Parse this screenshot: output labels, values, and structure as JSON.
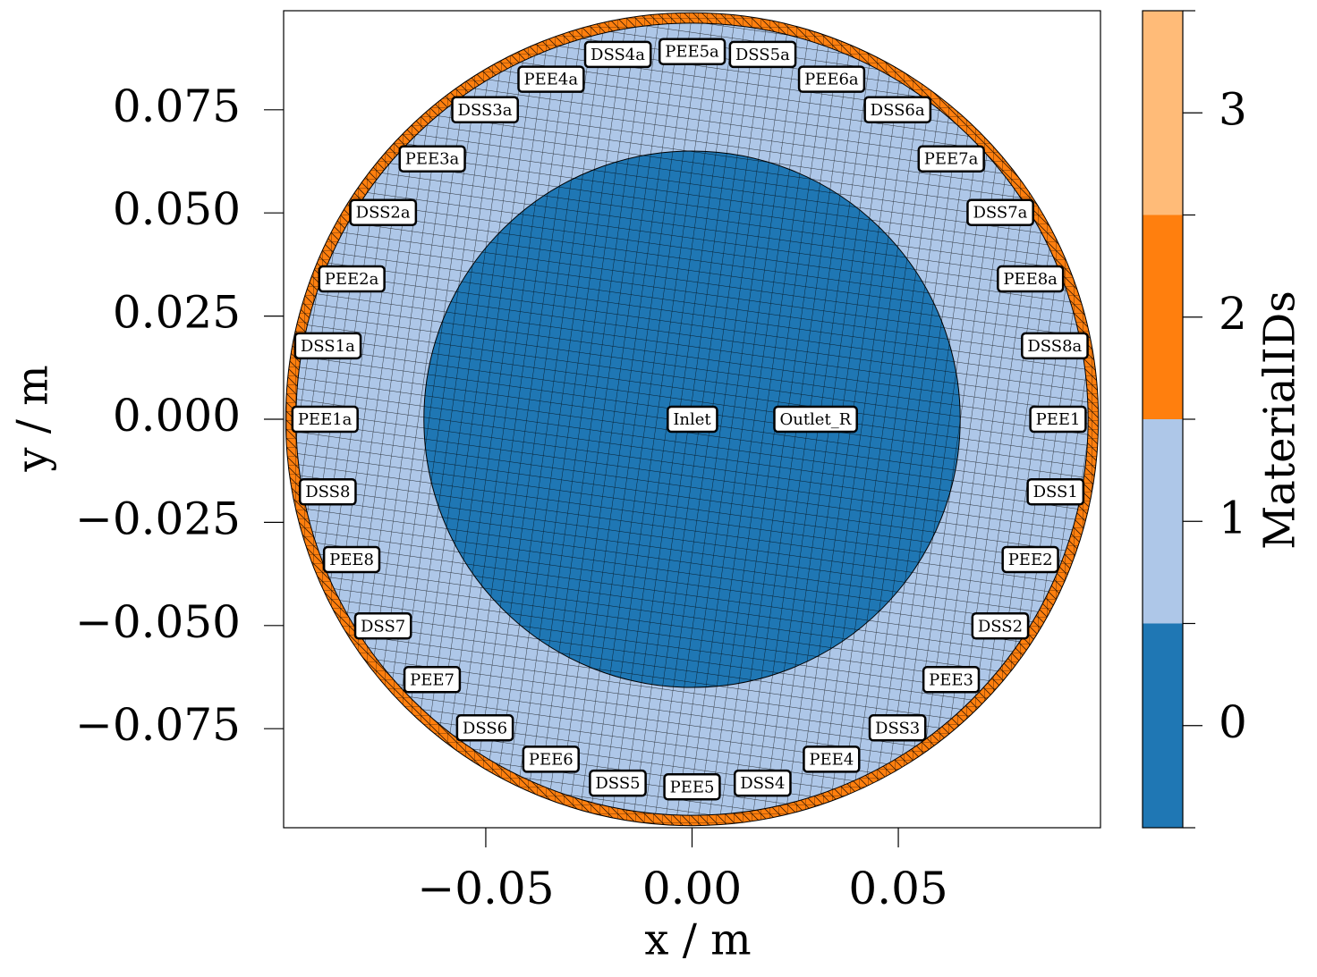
{
  "chart_data": {
    "type": "mesh",
    "xlabel": "x / m",
    "ylabel": "y / m",
    "xlim": [
      -0.099,
      0.099
    ],
    "ylim": [
      -0.099,
      0.099
    ],
    "xticks": [
      {
        "value": -0.05,
        "label": "−0.05"
      },
      {
        "value": 0,
        "label": "0.00"
      },
      {
        "value": 0.05,
        "label": "0.05"
      }
    ],
    "yticks": [
      {
        "value": -0.075,
        "label": "−0.075"
      },
      {
        "value": -0.05,
        "label": "−0.050"
      },
      {
        "value": -0.025,
        "label": "−0.025"
      },
      {
        "value": 0,
        "label": "0.000"
      },
      {
        "value": 0.025,
        "label": "0.025"
      },
      {
        "value": 0.05,
        "label": "0.050"
      },
      0.075
    ],
    "regions": [
      {
        "material": 2,
        "radius": 0.0985
      },
      {
        "material": 1,
        "radius": 0.096
      },
      {
        "material": 0,
        "radius": 0.065
      }
    ],
    "colorbar": {
      "label": "MaterialIDs",
      "categories": [
        0,
        1,
        2,
        3
      ],
      "colors": [
        "#1f77b4",
        "#aec7e8",
        "#ff7f0e",
        "#ffbb78"
      ],
      "clim": [
        -0.5,
        3.5
      ],
      "ticks": [
        0,
        1,
        2,
        3
      ]
    },
    "annotations": [
      {
        "text": "DSS4a",
        "x": -0.018,
        "y": 0.0884
      },
      {
        "text": "PEE5a",
        "x": 0,
        "y": 0.0891
      },
      {
        "text": "DSS5a",
        "x": 0.0171,
        "y": 0.0884
      },
      {
        "text": "PEE4a",
        "x": -0.0342,
        "y": 0.0824
      },
      {
        "text": "PEE6a",
        "x": 0.0338,
        "y": 0.0824
      },
      {
        "text": "DSS3a",
        "x": -0.0502,
        "y": 0.075
      },
      {
        "text": "DSS6a",
        "x": 0.0498,
        "y": 0.075
      },
      {
        "text": "PEE3a",
        "x": -0.063,
        "y": 0.0631
      },
      {
        "text": "PEE7a",
        "x": 0.0628,
        "y": 0.0631
      },
      {
        "text": "DSS2a",
        "x": -0.0749,
        "y": 0.0501
      },
      {
        "text": "DSS7a",
        "x": 0.0747,
        "y": 0.0501
      },
      {
        "text": "PEE2a",
        "x": -0.0825,
        "y": 0.034
      },
      {
        "text": "PEE8a",
        "x": 0.082,
        "y": 0.034
      },
      {
        "text": "DSS1a",
        "x": -0.0883,
        "y": 0.0178
      },
      {
        "text": "DSS8a",
        "x": 0.0879,
        "y": 0.0178
      },
      {
        "text": "PEE1a",
        "x": -0.089,
        "y": 0
      },
      {
        "text": "Inlet",
        "x": 0,
        "y": 0
      },
      {
        "text": "Outlet_R",
        "x": 0.0299,
        "y": 0
      },
      {
        "text": "PEE1",
        "x": 0.0887,
        "y": 0
      },
      {
        "text": "DSS8",
        "x": -0.0883,
        "y": -0.0176
      },
      {
        "text": "DSS1",
        "x": 0.0881,
        "y": -0.0176
      },
      {
        "text": "PEE8",
        "x": -0.0825,
        "y": -0.034
      },
      {
        "text": "PEE2",
        "x": 0.082,
        "y": -0.034
      },
      {
        "text": "DSS7",
        "x": -0.0749,
        "y": -0.0501
      },
      {
        "text": "DSS2",
        "x": 0.0747,
        "y": -0.0501
      },
      {
        "text": "PEE7",
        "x": -0.063,
        "y": -0.0631
      },
      {
        "text": "PEE3",
        "x": 0.0628,
        "y": -0.0631
      },
      {
        "text": "DSS6",
        "x": -0.0502,
        "y": -0.0748
      },
      {
        "text": "DSS3",
        "x": 0.0498,
        "y": -0.0748
      },
      {
        "text": "PEE6",
        "x": -0.0342,
        "y": -0.0824
      },
      {
        "text": "PEE4",
        "x": 0.0338,
        "y": -0.0824
      },
      {
        "text": "DSS5",
        "x": -0.018,
        "y": -0.0882
      },
      {
        "text": "PEE5",
        "x": 0,
        "y": -0.0891
      },
      {
        "text": "DSS4",
        "x": 0.0171,
        "y": -0.0882
      }
    ]
  }
}
